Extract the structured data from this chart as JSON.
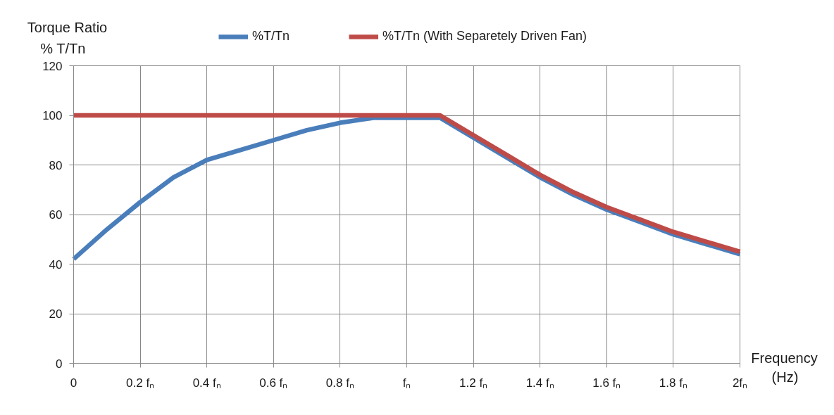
{
  "chart_data": {
    "type": "line",
    "xlabel": "Frequency\n(Hz)",
    "ylabel": "Torque Ratio\n% T/Tn",
    "x": [
      0,
      0.1,
      0.2,
      0.3,
      0.4,
      0.5,
      0.6,
      0.7,
      0.8,
      0.9,
      1.0,
      1.1,
      1.2,
      1.3,
      1.4,
      1.5,
      1.6,
      1.7,
      1.8,
      1.9,
      2.0
    ],
    "series": [
      {
        "name": "%T/Tn",
        "color": "#4a7ebb",
        "values": [
          42,
          54,
          65,
          75,
          82,
          86,
          90,
          94,
          97,
          99,
          99,
          99,
          91,
          83,
          75,
          68,
          62,
          57,
          52,
          48,
          44
        ]
      },
      {
        "name": "%T/Tn (With Separetely Driven Fan)",
        "color": "#be4b48",
        "values": [
          100,
          100,
          100,
          100,
          100,
          100,
          100,
          100,
          100,
          100,
          100,
          100,
          92,
          84,
          76,
          69,
          63,
          58,
          53,
          49,
          45
        ]
      }
    ],
    "xlim": [
      0,
      2
    ],
    "ylim": [
      0,
      120
    ],
    "xticks": [
      0,
      {
        "value": 0.2,
        "label": "0.2 fₙ"
      },
      {
        "value": 0.4,
        "label": "0.4 fₙ"
      },
      {
        "value": 0.6,
        "label": "0.6 fₙ"
      },
      {
        "value": 0.8,
        "label": "0.8 fₙ"
      },
      {
        "value": 1,
        "label": "fₙ"
      },
      {
        "value": 1.2,
        "label": "1.2 fₙ"
      },
      {
        "value": 1.4,
        "label": "1.4 fₙ"
      },
      {
        "value": 1.6,
        "label": "1.6 fₙ"
      },
      {
        "value": 1.8,
        "label": "1.8 fₙ"
      },
      {
        "value": 2,
        "label": "2fₙ"
      }
    ],
    "yticks": [
      0,
      20,
      40,
      60,
      80,
      100,
      120
    ],
    "grid": true,
    "legend": "top",
    "line_style": "solid"
  }
}
